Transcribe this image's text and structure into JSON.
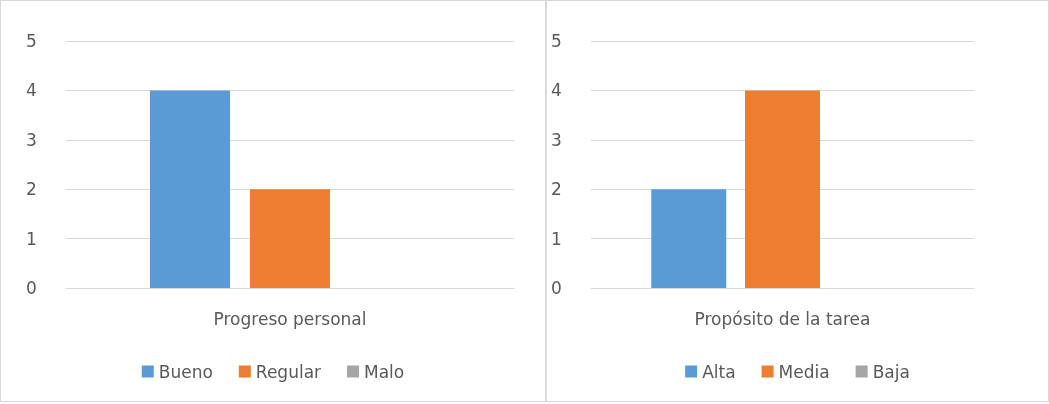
{
  "chart_data": [
    {
      "type": "bar",
      "categories": [
        "Progreso personal"
      ],
      "series": [
        {
          "name": "Bueno",
          "color": "#5b9bd5",
          "values": [
            4
          ]
        },
        {
          "name": "Regular",
          "color": "#ed7d31",
          "values": [
            2
          ]
        },
        {
          "name": "Malo",
          "color": "#a5a5a5",
          "values": [
            0
          ]
        }
      ],
      "ylim": [
        0,
        5
      ],
      "yticks": [
        0,
        1,
        2,
        3,
        4,
        5
      ],
      "grid": "y",
      "legend": "bottom"
    },
    {
      "type": "bar",
      "categories": [
        "Propósito de la tarea"
      ],
      "series": [
        {
          "name": "Alta",
          "color": "#5b9bd5",
          "values": [
            2
          ]
        },
        {
          "name": "Media",
          "color": "#ed7d31",
          "values": [
            4
          ]
        },
        {
          "name": "Baja",
          "color": "#a5a5a5",
          "values": [
            0
          ]
        }
      ],
      "ylim": [
        0,
        5
      ],
      "yticks": [
        0,
        1,
        2,
        3,
        4,
        5
      ],
      "grid": "y",
      "legend": "bottom"
    }
  ]
}
